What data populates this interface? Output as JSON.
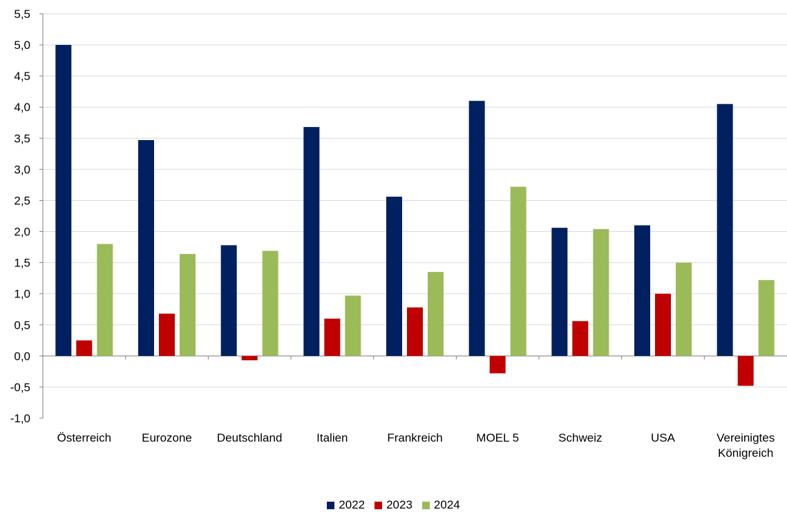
{
  "chart_data": {
    "type": "bar",
    "title": "",
    "xlabel": "",
    "ylabel": "",
    "categories": [
      [
        "Österreich"
      ],
      [
        "Eurozone"
      ],
      [
        "Deutschland"
      ],
      [
        "Italien"
      ],
      [
        "Frankreich"
      ],
      [
        "MOEL 5"
      ],
      [
        "Schweiz"
      ],
      [
        "USA"
      ],
      [
        "Vereinigtes",
        "Königreich"
      ]
    ],
    "ylim": [
      -1.0,
      5.5
    ],
    "ytick_step": 0.5,
    "ytick_labels": [
      "-1,0",
      "-0,5",
      "0,0",
      "0,5",
      "1,0",
      "1,5",
      "2,0",
      "2,5",
      "3,0",
      "3,5",
      "4,0",
      "4,5",
      "5,0",
      "5,5"
    ],
    "grid": true,
    "legend_position": "bottom-center",
    "series": [
      {
        "name": "2022",
        "color": "#002060",
        "values": [
          5.0,
          3.47,
          1.78,
          3.68,
          2.56,
          4.1,
          2.06,
          2.1,
          4.05
        ]
      },
      {
        "name": "2023",
        "color": "#C00000",
        "values": [
          0.25,
          0.68,
          -0.07,
          0.6,
          0.78,
          -0.28,
          0.56,
          1.0,
          -0.48
        ]
      },
      {
        "name": "2024",
        "color": "#9BBB59",
        "values": [
          1.8,
          1.64,
          1.69,
          0.97,
          1.35,
          2.72,
          2.04,
          1.5,
          1.22
        ]
      }
    ]
  }
}
